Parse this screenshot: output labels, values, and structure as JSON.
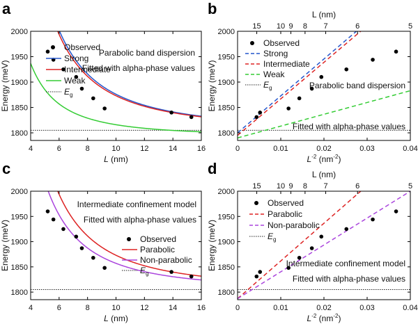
{
  "chart_data": [
    {
      "panel": "a",
      "type": "line",
      "xlabel": "L",
      "xunit": "(nm)",
      "ylabel": "Energy (meV)",
      "xlim": [
        4,
        16
      ],
      "ylim": [
        1785,
        2000
      ],
      "xticks": [
        4,
        6,
        8,
        10,
        12,
        14,
        16
      ],
      "yticks": [
        1800,
        1850,
        1900,
        1950,
        2000
      ],
      "annotations": [
        "Parabolic band dispersion",
        "Fitted with alpha-phase values"
      ],
      "observed": {
        "name": "Observed",
        "x": [
          5.2,
          5.6,
          6.3,
          7.2,
          7.6,
          8.4,
          9.2,
          13.9,
          15.3
        ],
        "y": [
          1960,
          1944,
          1925,
          1910,
          1887,
          1868,
          1848,
          1840,
          1831
        ]
      },
      "curves": [
        {
          "name": "Strong",
          "color": "#2255cc",
          "Eg": 1805,
          "A": 7100
        },
        {
          "name": "Intermediate",
          "color": "#dd2222",
          "Eg": 1805,
          "A": 6800
        },
        {
          "name": "Weak",
          "color": "#33cc33",
          "Eg": 1793,
          "A": 2300
        }
      ],
      "eg": {
        "name": "E",
        "sub": "g",
        "value": 1805
      }
    },
    {
      "panel": "b",
      "type": "line",
      "xlabel": "L",
      "xlabel_sup": "-2",
      "xunit": "(nm",
      "xunit_sup": "-2",
      "xunit_close": ")",
      "ylabel": "Energy (meV)",
      "top_axis_label": "L (nm)",
      "top_ticks": [
        15,
        10,
        9,
        8,
        7,
        6,
        5
      ],
      "xlim": [
        0,
        0.04
      ],
      "ylim": [
        1785,
        2000
      ],
      "xticks": [
        "0",
        "0.01",
        "0.02",
        "0.03",
        "0.04"
      ],
      "yticks": [
        1800,
        1850,
        1900,
        1950,
        2000
      ],
      "annotations": [
        "Parabolic band dispersion",
        "Fitted with alpha-phase values"
      ],
      "observed": {
        "name": "Observed",
        "x": [
          0.0044,
          0.0052,
          0.0118,
          0.0143,
          0.0172,
          0.0194,
          0.0252,
          0.0313,
          0.0367
        ],
        "y": [
          1831,
          1840,
          1848,
          1868,
          1887,
          1910,
          1925,
          1944,
          1960
        ]
      },
      "lines": [
        {
          "name": "Strong",
          "color": "#2255cc",
          "x0": 0,
          "y0": 1800,
          "x1": 0.0275,
          "y1": 2000
        },
        {
          "name": "Intermediate",
          "color": "#dd2222",
          "x0": 0,
          "y0": 1795,
          "x1": 0.0285,
          "y1": 2000
        },
        {
          "name": "Weak",
          "color": "#33cc33",
          "x0": 0,
          "y0": 1790,
          "x1": 0.04,
          "y1": 1883
        }
      ],
      "eg": {
        "name": "E",
        "sub": "g",
        "value": 1805
      }
    },
    {
      "panel": "c",
      "type": "line",
      "xlabel": "L",
      "xunit": "(nm)",
      "ylabel": "Energy (meV)",
      "xlim": [
        4,
        16
      ],
      "ylim": [
        1785,
        2000
      ],
      "xticks": [
        4,
        6,
        8,
        10,
        12,
        14,
        16
      ],
      "yticks": [
        1800,
        1850,
        1900,
        1950,
        2000
      ],
      "annotations": [
        "Intermediate confinement model",
        "Fitted with alpha-phase values"
      ],
      "observed": {
        "name": "Observed",
        "x": [
          5.2,
          5.6,
          6.3,
          7.2,
          7.6,
          8.4,
          9.2,
          13.9,
          15.3
        ],
        "y": [
          1960,
          1944,
          1925,
          1910,
          1887,
          1868,
          1848,
          1840,
          1831
        ]
      },
      "curves": [
        {
          "name": "Parabolic",
          "color": "#dd2222",
          "Eg": 1805,
          "A": 6800
        },
        {
          "name": "Non-parabolic",
          "color": "#aa44dd",
          "Eg": 1803,
          "A": 5400
        }
      ],
      "eg": {
        "name": "E",
        "sub": "g",
        "value": 1805
      }
    },
    {
      "panel": "d",
      "type": "line",
      "xlabel": "L",
      "xlabel_sup": "-2",
      "xunit": "(nm",
      "xunit_sup": "-2",
      "xunit_close": ")",
      "ylabel": "Energy (meV)",
      "top_axis_label": "L (nm)",
      "top_ticks": [
        15,
        10,
        9,
        8,
        7,
        6,
        5
      ],
      "xlim": [
        0,
        0.04
      ],
      "ylim": [
        1785,
        2000
      ],
      "xticks": [
        "0",
        "0.01",
        "0.02",
        "0.03",
        "0.04"
      ],
      "yticks": [
        1800,
        1850,
        1900,
        1950,
        2000
      ],
      "annotations": [
        "Intermediate confinement model",
        "Fitted with alpha-phase values"
      ],
      "observed": {
        "name": "Observed",
        "x": [
          0.0044,
          0.0052,
          0.0118,
          0.0143,
          0.0172,
          0.0194,
          0.0252,
          0.0313,
          0.0367
        ],
        "y": [
          1831,
          1840,
          1848,
          1868,
          1887,
          1910,
          1925,
          1944,
          1960
        ]
      },
      "lines": [
        {
          "name": "Parabolic",
          "color": "#dd2222",
          "x0": 0,
          "y0": 1787,
          "x1": 0.0285,
          "y1": 2000
        },
        {
          "name": "Non-parabolic",
          "color": "#aa44dd",
          "x0": 0,
          "y0": 1787,
          "x1": 0.04,
          "y1": 2000
        }
      ],
      "eg": {
        "name": "E",
        "sub": "g",
        "value": 1805
      }
    }
  ]
}
